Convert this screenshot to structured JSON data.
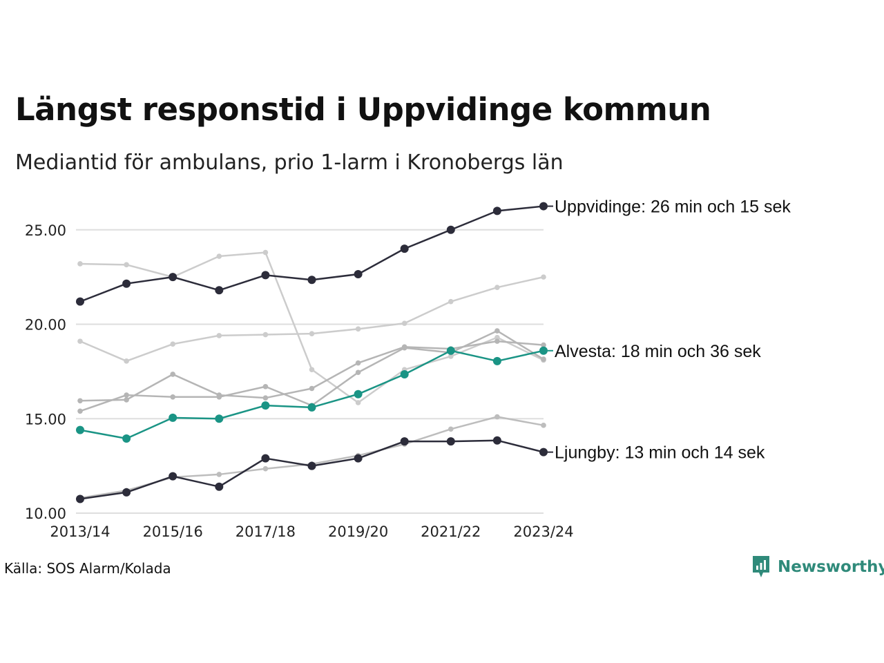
{
  "title": "Längst responstid i Uppvidinge kommun",
  "subtitle": "Mediantid för ambulans, prio 1-larm i Kronobergs län",
  "source": "Källa: SOS Alarm/Kolada",
  "brand": {
    "name": "Newsworthy",
    "icon": "newsworthy-logo-icon",
    "color": "#2f8a7a"
  },
  "chart_data": {
    "type": "line",
    "x": [
      "2013/14",
      "2014/15",
      "2015/16",
      "2016/17",
      "2017/18",
      "2018/19",
      "2019/20",
      "2020/21",
      "2021/22",
      "2022/23",
      "2023/24"
    ],
    "x_tick_labels": [
      "2013/14",
      "2015/16",
      "2017/18",
      "2019/20",
      "2021/22",
      "2023/24"
    ],
    "ylim": [
      10,
      26.3
    ],
    "y_ticks": [
      10,
      15,
      20,
      25
    ],
    "y_tick_labels": [
      "10.00",
      "15.00",
      "20.00",
      "25.00"
    ],
    "grid": "horizontal",
    "series": [
      {
        "values": [
          23.2,
          23.15,
          22.5,
          23.6,
          23.8,
          17.6,
          15.85,
          17.6,
          18.3,
          19.3,
          18.1
        ],
        "color": "#cccccc",
        "highlight": false
      },
      {
        "values": [
          19.1,
          18.05,
          18.95,
          19.4,
          19.45,
          19.5,
          19.75,
          20.05,
          21.2,
          21.95,
          22.5
        ],
        "color": "#cccccc",
        "highlight": false
      },
      {
        "values": [
          15.95,
          16.0,
          17.35,
          16.25,
          16.1,
          16.6,
          17.95,
          18.8,
          18.7,
          19.1,
          18.9
        ],
        "color": "#b5b5b5",
        "highlight": false
      },
      {
        "values": [
          15.4,
          16.25,
          16.15,
          16.15,
          16.7,
          15.7,
          17.45,
          18.75,
          18.5,
          19.65,
          18.15
        ],
        "color": "#b5b5b5",
        "highlight": false
      },
      {
        "values": [
          10.8,
          11.2,
          11.9,
          12.05,
          12.35,
          12.6,
          13.05,
          13.65,
          14.45,
          15.1,
          14.65
        ],
        "color": "#bdbdbd",
        "highlight": false
      },
      {
        "name": "Alvesta",
        "label": "Alvesta: 18 min och 36 sek",
        "values": [
          14.4,
          13.95,
          15.05,
          15.0,
          15.7,
          15.6,
          16.3,
          17.35,
          18.6,
          18.05,
          18.6
        ],
        "color": "#1a9485",
        "highlight": true
      },
      {
        "name": "Ljungby",
        "label": "Ljungby: 13 min och 14 sek",
        "values": [
          10.75,
          11.1,
          11.95,
          11.4,
          12.9,
          12.5,
          12.9,
          13.8,
          13.8,
          13.85,
          13.23
        ],
        "color": "#2c2c3a",
        "highlight": true
      },
      {
        "name": "Uppvidinge",
        "label": "Uppvidinge: 26 min och 15 sek",
        "values": [
          21.2,
          22.15,
          22.5,
          21.8,
          22.6,
          22.35,
          22.65,
          24.0,
          25.0,
          26.0,
          26.25
        ],
        "color": "#2c2c3a",
        "highlight": true
      }
    ]
  }
}
